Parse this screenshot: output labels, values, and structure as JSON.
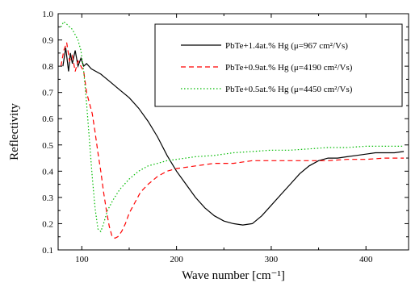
{
  "chart_data": {
    "type": "line",
    "title": "",
    "xlabel": "Wave number [cm⁻¹]",
    "ylabel": "Reflectivity",
    "xlim": [
      75,
      445
    ],
    "ylim": [
      0.1,
      1.0
    ],
    "x_ticks": [
      100,
      200,
      300,
      400
    ],
    "x_tick_labels": [
      "100",
      "200",
      "300",
      "400"
    ],
    "y_ticks": [
      0.1,
      0.2,
      0.3,
      0.4,
      0.5,
      0.6,
      0.7,
      0.8,
      0.9,
      1.0
    ],
    "y_tick_labels": [
      "0.1",
      "0.2",
      "0.3",
      "0.4",
      "0.5",
      "0.6",
      "0.7",
      "0.8",
      "0.9",
      "1.0"
    ],
    "grid": false,
    "legend_position": "top-right",
    "series": [
      {
        "name": "PbTe+1.4at.% Hg (μ=967 cm²/Vs)",
        "color": "#000000",
        "dash": "solid",
        "points": [
          [
            80,
            0.8
          ],
          [
            83,
            0.87
          ],
          [
            86,
            0.78
          ],
          [
            88,
            0.85
          ],
          [
            90,
            0.81
          ],
          [
            93,
            0.86
          ],
          [
            96,
            0.8
          ],
          [
            99,
            0.83
          ],
          [
            102,
            0.8
          ],
          [
            105,
            0.81
          ],
          [
            110,
            0.79
          ],
          [
            115,
            0.78
          ],
          [
            120,
            0.77
          ],
          [
            130,
            0.74
          ],
          [
            140,
            0.71
          ],
          [
            150,
            0.68
          ],
          [
            160,
            0.64
          ],
          [
            170,
            0.59
          ],
          [
            180,
            0.53
          ],
          [
            190,
            0.46
          ],
          [
            200,
            0.4
          ],
          [
            210,
            0.35
          ],
          [
            220,
            0.3
          ],
          [
            230,
            0.26
          ],
          [
            240,
            0.23
          ],
          [
            250,
            0.21
          ],
          [
            260,
            0.2
          ],
          [
            270,
            0.195
          ],
          [
            280,
            0.2
          ],
          [
            290,
            0.23
          ],
          [
            300,
            0.27
          ],
          [
            310,
            0.31
          ],
          [
            320,
            0.35
          ],
          [
            330,
            0.39
          ],
          [
            340,
            0.42
          ],
          [
            350,
            0.44
          ],
          [
            360,
            0.45
          ],
          [
            370,
            0.45
          ],
          [
            380,
            0.455
          ],
          [
            390,
            0.46
          ],
          [
            400,
            0.465
          ],
          [
            410,
            0.47
          ],
          [
            420,
            0.47
          ],
          [
            430,
            0.47
          ],
          [
            440,
            0.475
          ]
        ]
      },
      {
        "name": "PbTe+0.9at.% Hg (μ=4190 cm²/Vs)",
        "color": "#ff0000",
        "dash": "dashed",
        "points": [
          [
            78,
            0.8
          ],
          [
            81,
            0.86
          ],
          [
            84,
            0.89
          ],
          [
            87,
            0.82
          ],
          [
            90,
            0.84
          ],
          [
            93,
            0.78
          ],
          [
            96,
            0.82
          ],
          [
            99,
            0.8
          ],
          [
            102,
            0.78
          ],
          [
            105,
            0.7
          ],
          [
            108,
            0.66
          ],
          [
            111,
            0.62
          ],
          [
            114,
            0.55
          ],
          [
            117,
            0.47
          ],
          [
            120,
            0.4
          ],
          [
            123,
            0.32
          ],
          [
            126,
            0.25
          ],
          [
            129,
            0.19
          ],
          [
            132,
            0.15
          ],
          [
            135,
            0.145
          ],
          [
            138,
            0.15
          ],
          [
            142,
            0.17
          ],
          [
            146,
            0.2
          ],
          [
            150,
            0.24
          ],
          [
            156,
            0.28
          ],
          [
            162,
            0.32
          ],
          [
            170,
            0.35
          ],
          [
            180,
            0.38
          ],
          [
            190,
            0.4
          ],
          [
            200,
            0.41
          ],
          [
            220,
            0.42
          ],
          [
            240,
            0.43
          ],
          [
            260,
            0.43
          ],
          [
            280,
            0.44
          ],
          [
            300,
            0.44
          ],
          [
            320,
            0.44
          ],
          [
            340,
            0.44
          ],
          [
            360,
            0.44
          ],
          [
            380,
            0.445
          ],
          [
            400,
            0.445
          ],
          [
            420,
            0.45
          ],
          [
            440,
            0.45
          ]
        ]
      },
      {
        "name": "PbTe+0.5at.% Hg (μ=4450 cm²/Vs)",
        "color": "#00bb00",
        "dash": "dotted",
        "points": [
          [
            78,
            0.95
          ],
          [
            81,
            0.97
          ],
          [
            84,
            0.96
          ],
          [
            87,
            0.95
          ],
          [
            90,
            0.94
          ],
          [
            93,
            0.92
          ],
          [
            96,
            0.9
          ],
          [
            99,
            0.86
          ],
          [
            102,
            0.78
          ],
          [
            105,
            0.66
          ],
          [
            108,
            0.52
          ],
          [
            111,
            0.38
          ],
          [
            114,
            0.26
          ],
          [
            117,
            0.18
          ],
          [
            120,
            0.17
          ],
          [
            123,
            0.2
          ],
          [
            127,
            0.25
          ],
          [
            133,
            0.29
          ],
          [
            140,
            0.33
          ],
          [
            150,
            0.37
          ],
          [
            160,
            0.4
          ],
          [
            170,
            0.42
          ],
          [
            180,
            0.43
          ],
          [
            190,
            0.44
          ],
          [
            200,
            0.445
          ],
          [
            220,
            0.455
          ],
          [
            240,
            0.46
          ],
          [
            260,
            0.47
          ],
          [
            280,
            0.475
          ],
          [
            300,
            0.48
          ],
          [
            320,
            0.48
          ],
          [
            340,
            0.485
          ],
          [
            360,
            0.49
          ],
          [
            380,
            0.49
          ],
          [
            400,
            0.495
          ],
          [
            420,
            0.495
          ],
          [
            440,
            0.495
          ]
        ]
      }
    ]
  }
}
